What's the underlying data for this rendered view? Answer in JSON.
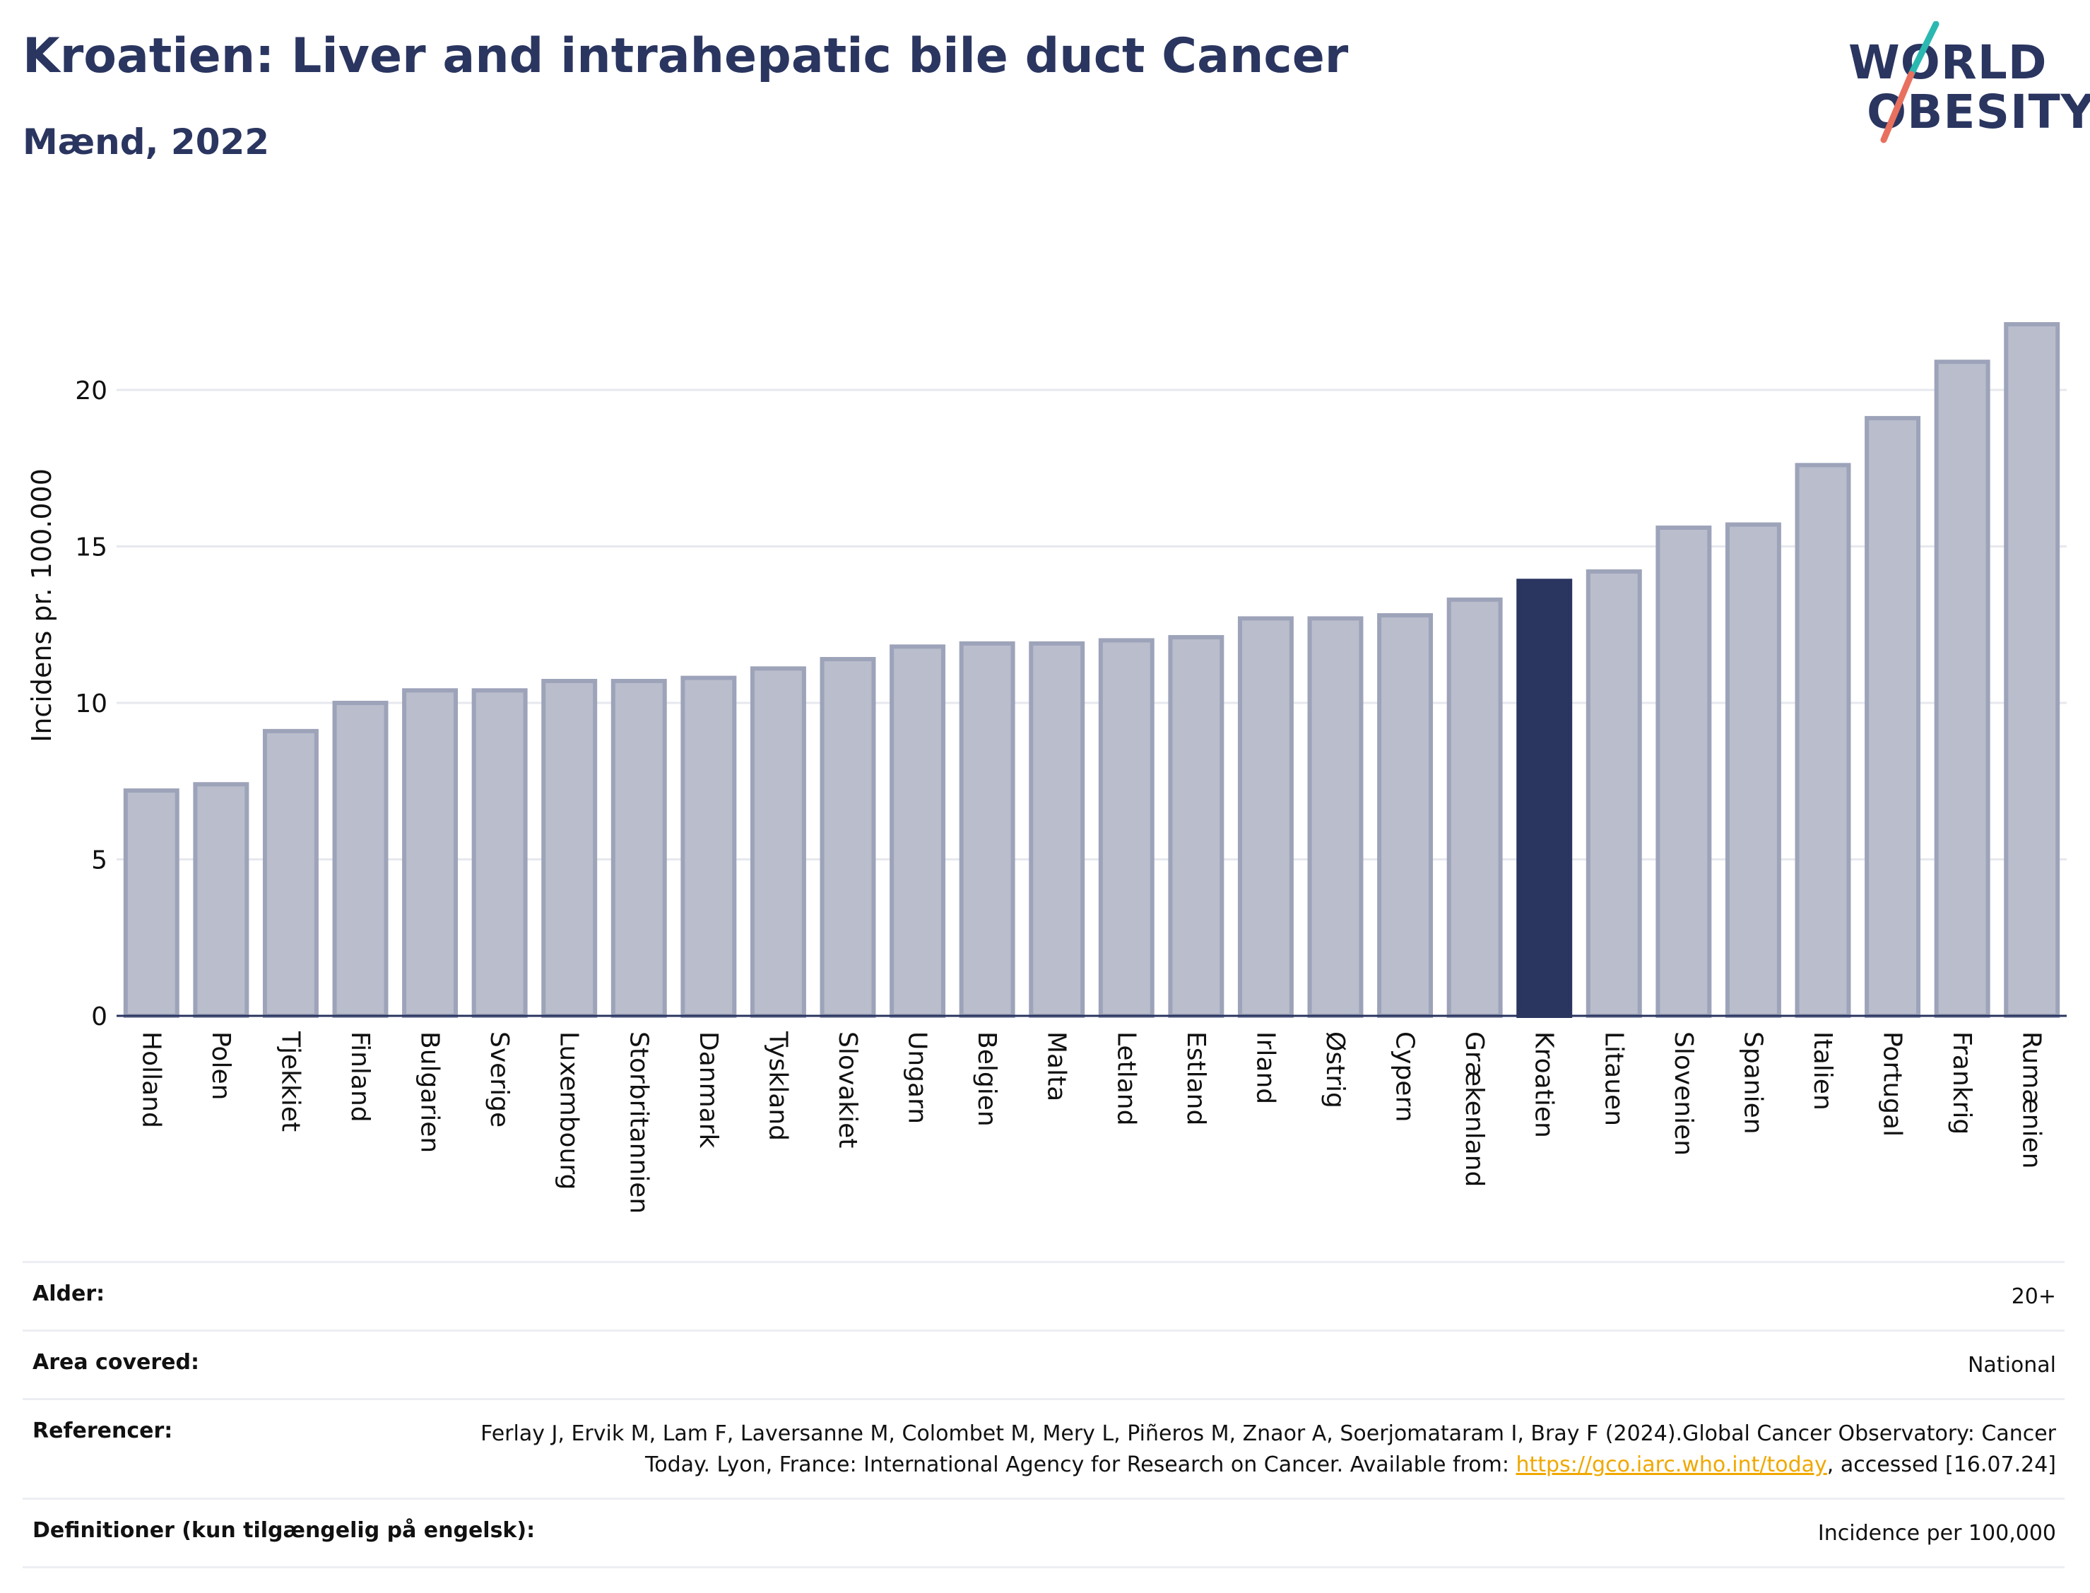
{
  "header": {
    "title": "Kroatien: Liver and intrahepatic bile duct Cancer",
    "subtitle": "Mænd, 2022"
  },
  "logo": {
    "line1": "WORLD",
    "line2": "OBESITY",
    "accent_colors": [
      "#2bb8b0",
      "#e8705f"
    ]
  },
  "chart_data": {
    "type": "bar",
    "ylabel": "Incidens pr. 100.000",
    "xlabel": "",
    "ylim": [
      0,
      22.8
    ],
    "yticks": [
      0,
      5,
      10,
      15,
      20
    ],
    "grid": true,
    "highlight": "Kroatien",
    "colors": {
      "bar": "#b9bdcc",
      "bar_border": "#9da3b9",
      "highlight": "#2a3560"
    },
    "categories": [
      "Holland",
      "Polen",
      "Tjekkiet",
      "Finland",
      "Bulgarien",
      "Sverige",
      "Luxembourg",
      "Storbritannien",
      "Danmark",
      "Tyskland",
      "Slovakiet",
      "Ungarn",
      "Belgien",
      "Malta",
      "Letland",
      "Estland",
      "Irland",
      "Østrig",
      "Cypern",
      "Grækenland",
      "Kroatien",
      "Litauen",
      "Slovenien",
      "Spanien",
      "Italien",
      "Portugal",
      "Frankrig",
      "Rumænien"
    ],
    "values": [
      7.2,
      7.4,
      9.1,
      10.0,
      10.4,
      10.4,
      10.7,
      10.7,
      10.8,
      11.1,
      11.4,
      11.8,
      11.9,
      11.9,
      12.0,
      12.1,
      12.7,
      12.7,
      12.8,
      13.3,
      13.9,
      14.2,
      15.6,
      15.7,
      17.6,
      19.1,
      20.9,
      22.1
    ]
  },
  "meta": [
    {
      "label": "Alder:",
      "value": "20+"
    },
    {
      "label": "Area covered:",
      "value": "National"
    },
    {
      "label": "Referencer:",
      "value_before": "Ferlay J, Ervik M, Lam F, Laversanne M, Colombet M, Mery L, Piñeros M, Znaor A, Soerjomataram I, Bray F (2024).Global Cancer Observatory: Cancer Today. Lyon, France: International Agency for Research on Cancer. Available from: ",
      "link": "https://gco.iarc.who.int/today",
      "value_after": ", accessed [16.07.24]"
    },
    {
      "label": "Definitioner (kun tilgængelig på engelsk):",
      "value": "Incidence per 100,000"
    }
  ]
}
